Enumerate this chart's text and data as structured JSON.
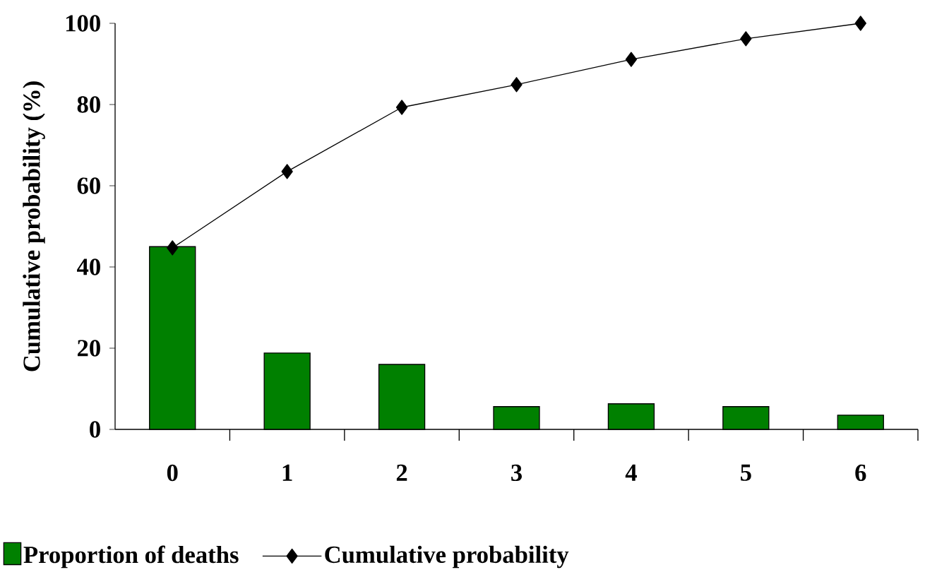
{
  "chart_data": {
    "type": "bar",
    "ylabel": "Cumulative probability (%)",
    "categories": [
      "0",
      "1",
      "2",
      "3",
      "4",
      "5",
      "6"
    ],
    "series": [
      {
        "name": "Proportion of deaths",
        "color": "#008000",
        "values": [
          45,
          18.8,
          16,
          5.6,
          6.3,
          5.6,
          3.5
        ]
      },
      {
        "name": "Cumulative probability",
        "type": "line",
        "color": "#000000",
        "marker": "diamond",
        "values": [
          44.7,
          63.5,
          79.3,
          84.9,
          91.1,
          96.2,
          100
        ]
      }
    ],
    "ylim": [
      0,
      100
    ],
    "yticks": [
      0,
      20,
      40,
      60,
      80,
      100
    ],
    "grid": false,
    "legend": "bottom"
  }
}
